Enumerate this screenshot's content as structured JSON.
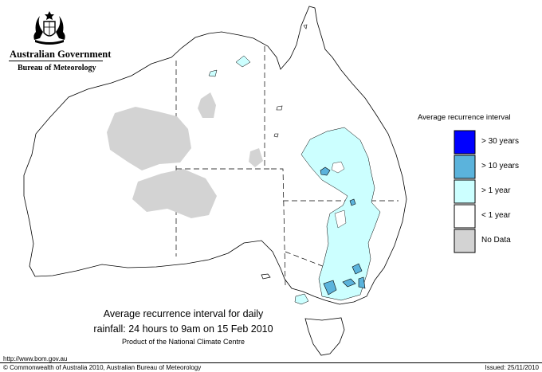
{
  "branding": {
    "government": "Australian Government",
    "bureau": "Bureau of Meteorology"
  },
  "colors": {
    "over_30_years": "#0000ff",
    "over_10_years": "#5bb3dc",
    "over_1_year": "#ccffff",
    "under_1_year": "#ffffff",
    "no_data": "#d3d3d3",
    "outline": "#000000"
  },
  "legend": {
    "title": "Average recurrence interval",
    "items": [
      {
        "label": "> 30 years",
        "color": "#0000ff"
      },
      {
        "label": "> 10 years",
        "color": "#5bb3dc"
      },
      {
        "label": "> 1 year",
        "color": "#ccffff"
      },
      {
        "label": "< 1 year",
        "color": "#ffffff"
      },
      {
        "label": "No Data",
        "color": "#d3d3d3"
      }
    ]
  },
  "caption": {
    "line1": "Average recurrence interval for daily",
    "line2": "rainfall: 24 hours to 9am on 15 Feb 2010",
    "line3": "Product of the National Climate Centre"
  },
  "footer": {
    "url": "http://www.bom.gov.au",
    "copyright": "© Commonwealth of Australia 2010, Australian Bureau of Meteorology",
    "issued": "Issued: 25/11/2010"
  }
}
